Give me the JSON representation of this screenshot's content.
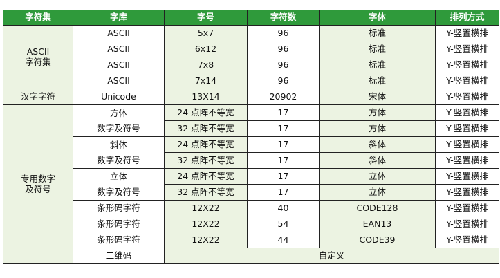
{
  "headers": [
    "字符集",
    "字库",
    "字号",
    "字符数",
    "字体",
    "排列方式"
  ],
  "ascii_group": {
    "label_line1": "ASCII",
    "label_line2": "字符集",
    "rows": [
      {
        "lib": "ASCII",
        "size": "5x7",
        "count": "96",
        "font": "标准",
        "arrange": "Y-竖置横排"
      },
      {
        "lib": "ASCII",
        "size": "6x12",
        "count": "96",
        "font": "标准",
        "arrange": "Y-竖置横排"
      },
      {
        "lib": "ASCII",
        "size": "7x8",
        "count": "96",
        "font": "标准",
        "arrange": "Y-竖置横排"
      },
      {
        "lib": "ASCII",
        "size": "7x14",
        "count": "96",
        "font": "标准",
        "arrange": "Y-竖置横排"
      }
    ]
  },
  "hanzi": {
    "set": "汉字字符",
    "lib": "Unicode",
    "size": "13X14",
    "count": "20902",
    "font": "宋体",
    "arrange": "Y-竖置横排"
  },
  "special_group": {
    "label_line1": "专用数字",
    "label_line2": "及符号",
    "styled_sets": [
      {
        "name_line1": "方体",
        "name_line2": "数字及符号",
        "rows": [
          {
            "size": "24 点阵不等宽",
            "count": "17",
            "font": "方体",
            "arrange": "Y-竖置横排"
          },
          {
            "size": "32 点阵不等宽",
            "count": "17",
            "font": "方体",
            "arrange": "Y-竖置横排"
          }
        ]
      },
      {
        "name_line1": "斜体",
        "name_line2": "数字及符号",
        "rows": [
          {
            "size": "24 点阵不等宽",
            "count": "17",
            "font": "斜体",
            "arrange": "Y-竖置横排"
          },
          {
            "size": "32 点阵不等宽",
            "count": "17",
            "font": "斜体",
            "arrange": "Y-竖置横排"
          }
        ]
      },
      {
        "name_line1": "立体",
        "name_line2": "数字及符号",
        "rows": [
          {
            "size": "24 点阵不等宽",
            "count": "17",
            "font": "立体",
            "arrange": "Y-竖置横排"
          },
          {
            "size": "32 点阵不等宽",
            "count": "17",
            "font": "立体",
            "arrange": "Y-竖置横排"
          }
        ]
      }
    ],
    "barcodes": [
      {
        "lib": "条形码字符",
        "size": "12X22",
        "count": "40",
        "font": "CODE128",
        "arrange": "Y-竖置横排"
      },
      {
        "lib": "条形码字符",
        "size": "12X22",
        "count": "54",
        "font": "EAN13",
        "arrange": "Y-竖置横排"
      },
      {
        "lib": "条形码字符",
        "size": "12X22",
        "count": "44",
        "font": "CODE39",
        "arrange": "Y-竖置横排"
      }
    ],
    "qr": {
      "lib": "二维码",
      "value": "自定义"
    }
  }
}
